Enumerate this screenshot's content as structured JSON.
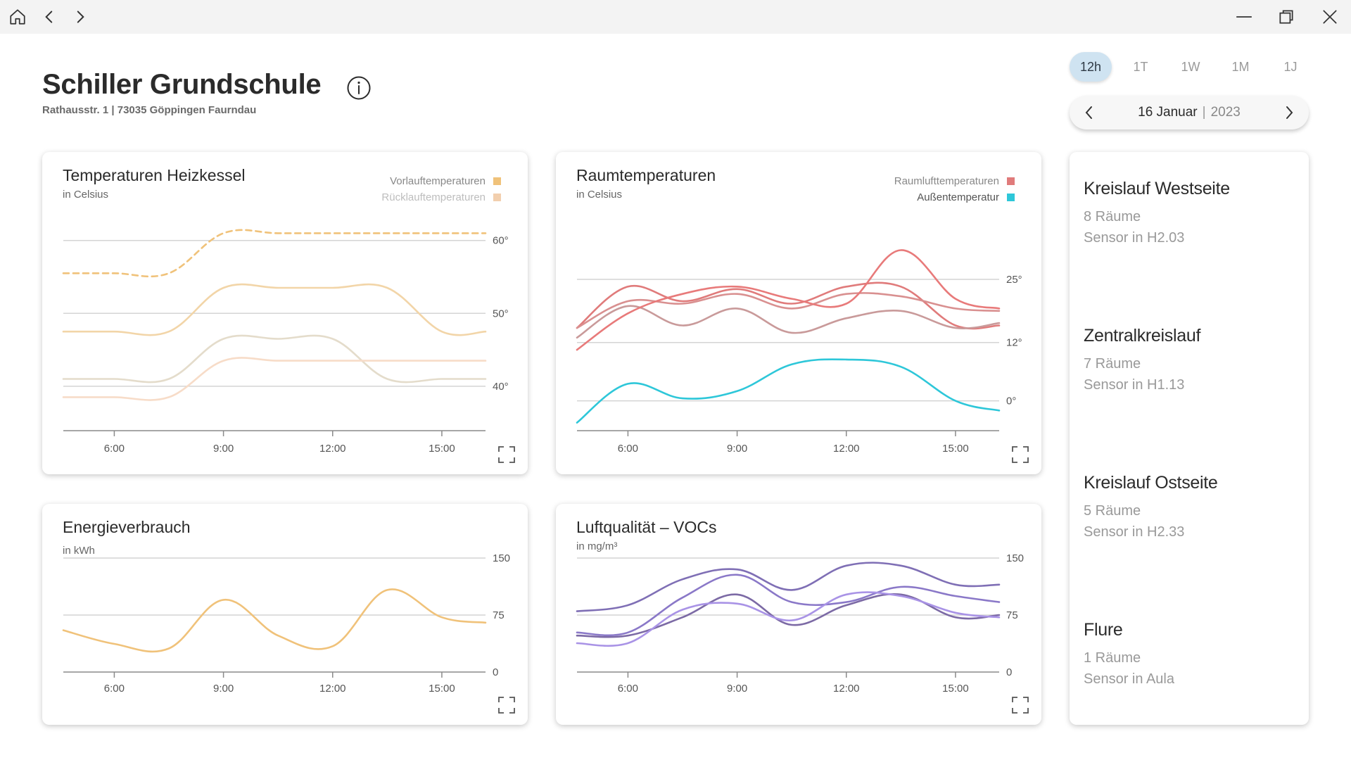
{
  "window": {
    "icons": [
      "home-icon",
      "back-icon",
      "forward-icon",
      "minimize-icon",
      "restore-icon",
      "close-icon"
    ]
  },
  "header": {
    "title": "Schiller Grundschule",
    "address": "Rathausstr. 1 | 73035 Göppingen Faurndau"
  },
  "range": {
    "tabs": [
      "12h",
      "1T",
      "1W",
      "1M",
      "1J"
    ],
    "active": "12h",
    "date_day": "16 Januar",
    "date_sep": "|",
    "date_year": "2023"
  },
  "cards": {
    "heizkessel": {
      "title": "Temperaturen Heizkessel",
      "unit": "in Celsius"
    },
    "raum": {
      "title": "Raumtemperaturen",
      "unit": "in Celsius"
    },
    "energie": {
      "title": "Energieverbrauch",
      "unit": "in kWh"
    },
    "luft": {
      "title": "Luftqualität – VOCs",
      "unit": "in mg/m³"
    }
  },
  "circuits": [
    {
      "name": "Kreislauf Westseite",
      "rooms": "8 Räume",
      "sensor": "Sensor in H2.03"
    },
    {
      "name": "Zentralkreislauf",
      "rooms": "7 Räume",
      "sensor": "Sensor in H1.13"
    },
    {
      "name": "Kreislauf Ostseite",
      "rooms": "5 Räume",
      "sensor": "Sensor in H2.33"
    },
    {
      "name": "Flure",
      "rooms": "1 Räume",
      "sensor": "Sensor in Aula"
    }
  ],
  "colors": {
    "accent_tab": "#cfe3f1",
    "vorlauf": "#f0c27a",
    "ruecklauf": "#f2cfae",
    "raumluft": "#e07b7b",
    "aussen": "#2ec7d9",
    "energie": "#f0c27a",
    "voc": "#8a78c8"
  },
  "chart_data": [
    {
      "type": "line",
      "title": "Temperaturen Heizkessel",
      "subtitle": "in Celsius",
      "x_ticks": [
        "6:00",
        "9:00",
        "12:00",
        "15:00"
      ],
      "x": [
        4.6,
        6,
        7.5,
        9,
        10.5,
        12,
        13.5,
        15,
        16.2
      ],
      "y_ticks": [
        40,
        50,
        60
      ],
      "y_tick_labels": [
        "40°",
        "50°",
        "60°"
      ],
      "ylim": [
        34,
        62
      ],
      "grid": true,
      "legend": "top-right",
      "legend_entries": [
        {
          "name": "Vorlauftemperaturen",
          "color": "#f0c27a"
        },
        {
          "name": "Rücklauftemperaturen",
          "color": "#f2cfae"
        }
      ],
      "series": [
        {
          "name": "Vorlauftemperaturen",
          "color": "#f0c27a",
          "dashed": true,
          "values": [
            55.5,
            55.5,
            55.5,
            61,
            61,
            61,
            61,
            61,
            61
          ]
        },
        {
          "color": "#f2d5a8",
          "values": [
            47.5,
            47.5,
            47.5,
            53.5,
            53.5,
            53.5,
            53.5,
            47.5,
            47.5
          ]
        },
        {
          "color": "#e4dccb",
          "values": [
            41,
            41,
            41,
            46.5,
            46.5,
            46.5,
            41,
            41,
            41
          ]
        },
        {
          "color": "#f7dcc8",
          "values": [
            38.5,
            38.5,
            38.5,
            43.5,
            43.5,
            43.5,
            43.5,
            43.5,
            43.5
          ]
        }
      ]
    },
    {
      "type": "line",
      "title": "Raumtemperaturen",
      "subtitle": "in Celsius",
      "x_ticks": [
        "6:00",
        "9:00",
        "12:00",
        "15:00"
      ],
      "x": [
        4.6,
        6,
        7.5,
        9,
        10.5,
        12,
        13.5,
        15,
        16.2
      ],
      "y_ticks": [
        0,
        12,
        25
      ],
      "y_tick_labels": [
        "0°",
        "12°",
        "25°"
      ],
      "ylim": [
        -6,
        36
      ],
      "grid": true,
      "legend": "top-right",
      "legend_entries": [
        {
          "name": "Raumlufttemperaturen",
          "color": "#e07b7b"
        },
        {
          "name": "Außentemperatur",
          "color": "#2ec7d9"
        }
      ],
      "series": [
        {
          "color": "#e07b7b",
          "values": [
            15,
            23.5,
            20.5,
            23,
            20,
            23.5,
            23.5,
            15.5,
            15.5
          ]
        },
        {
          "color": "#d99090",
          "values": [
            15,
            20.5,
            20,
            22,
            19,
            22,
            21.5,
            19,
            18.5
          ]
        },
        {
          "color": "#c99a9a",
          "values": [
            13,
            19.5,
            15.5,
            19,
            14,
            17,
            18.5,
            15,
            16
          ]
        },
        {
          "color": "#e87a7a",
          "values": [
            10.5,
            18,
            22,
            23.5,
            21,
            20,
            31,
            21,
            19
          ]
        },
        {
          "name": "Außentemperatur",
          "color": "#2ec7d9",
          "values": [
            -4.5,
            3.5,
            0.5,
            2,
            7.5,
            8.5,
            7,
            0,
            -2
          ]
        }
      ]
    },
    {
      "type": "line",
      "title": "Energieverbrauch",
      "subtitle": "in kWh",
      "x_ticks": [
        "6:00",
        "9:00",
        "12:00",
        "15:00"
      ],
      "x": [
        4.6,
        6,
        7.5,
        9,
        10.5,
        12,
        13.5,
        15,
        16.2
      ],
      "y_ticks": [
        0,
        75,
        150
      ],
      "ylim": [
        0,
        150
      ],
      "grid": true,
      "series": [
        {
          "color": "#f0c27a",
          "values": [
            55,
            37,
            31,
            95,
            48,
            34,
            108,
            72,
            65
          ]
        }
      ]
    },
    {
      "type": "line",
      "title": "Luftqualität – VOCs",
      "subtitle": "in mg/m³",
      "x_ticks": [
        "6:00",
        "9:00",
        "12:00",
        "15:00"
      ],
      "x": [
        4.6,
        6,
        7.5,
        9,
        10.5,
        12,
        13.5,
        15,
        16.2
      ],
      "y_ticks": [
        0,
        75,
        150
      ],
      "ylim": [
        0,
        150
      ],
      "grid": true,
      "series": [
        {
          "color": "#7f6fb5",
          "values": [
            80,
            88,
            122,
            135,
            108,
            140,
            140,
            115,
            115
          ]
        },
        {
          "color": "#8a78c8",
          "values": [
            52,
            52,
            98,
            128,
            92,
            92,
            112,
            100,
            92
          ]
        },
        {
          "color": "#7c6aa5",
          "values": [
            48,
            48,
            72,
            102,
            62,
            88,
            102,
            72,
            75
          ]
        },
        {
          "color": "#a993e6",
          "values": [
            38,
            38,
            82,
            90,
            68,
            102,
            100,
            78,
            72
          ]
        }
      ]
    }
  ]
}
